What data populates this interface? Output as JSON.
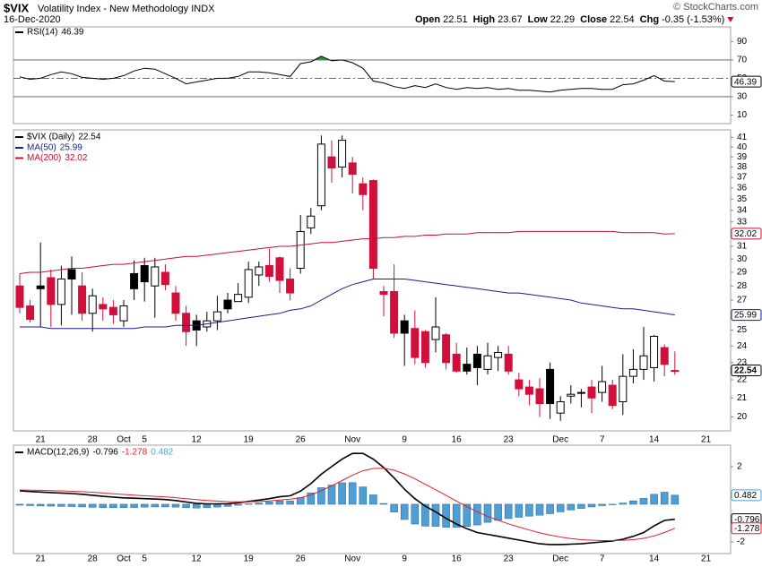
{
  "header": {
    "symbol": "$VIX",
    "name": "Volatility Index - New Methodology INDX",
    "date": "16-Dec-2020",
    "credit": "© StockCharts.com",
    "quote": [
      {
        "label": "Open",
        "value": 22.51
      },
      {
        "label": "High",
        "value": 23.67
      },
      {
        "label": "Low",
        "value": 22.29
      },
      {
        "label": "Close",
        "value": 22.54
      },
      {
        "label": "Chg",
        "value": -0.35
      }
    ],
    "change_pct": {
      "value": -1.53,
      "label": "(-1.53%)"
    }
  },
  "chart_data": [
    {
      "type": "rsi",
      "ylim": [
        0.7,
        106
      ],
      "yticks": [
        10,
        30,
        50,
        70,
        90
      ],
      "levels": [
        {
          "value": 70
        },
        {
          "value": 50,
          "dash": true
        },
        {
          "value": 30
        }
      ],
      "overbought_color": "#3d8f3d",
      "oversold_color": "#d0103a",
      "series": [
        {
          "name": "RSI(14)",
          "color": "#000000",
          "values": [
            51.5,
            49,
            50,
            54,
            57,
            55,
            51,
            50,
            49,
            50,
            53,
            58,
            61,
            60,
            55,
            50,
            44,
            46,
            48,
            50,
            50,
            52,
            57,
            57,
            56,
            54,
            52,
            66,
            68,
            74,
            69,
            70,
            67,
            61,
            47,
            45,
            41,
            39,
            42,
            40,
            44,
            40,
            38,
            40,
            39,
            40,
            38,
            39,
            37,
            37,
            36,
            35,
            37,
            38,
            39,
            39,
            38,
            38,
            43,
            44,
            48,
            53,
            47,
            46.39,
            null,
            null,
            null
          ]
        }
      ]
    },
    {
      "type": "candlestick",
      "name": "$VIX (Daily)",
      "log": true,
      "ylim": [
        19.3,
        41.8
      ],
      "yticks": [
        20,
        21,
        22,
        23,
        24,
        25,
        26,
        27,
        28,
        29,
        30,
        31,
        32,
        33,
        34,
        35,
        36,
        37,
        38,
        39,
        40,
        41
      ],
      "up_color": "#000000",
      "down_color": "#d0103a",
      "categories": [
        null,
        null,
        "21",
        null,
        null,
        null,
        null,
        "28",
        null,
        null,
        "Oct",
        null,
        "5",
        null,
        null,
        null,
        null,
        "12",
        null,
        null,
        null,
        null,
        "19",
        null,
        null,
        null,
        null,
        "26",
        null,
        null,
        null,
        null,
        "Nov",
        null,
        null,
        null,
        null,
        "9",
        null,
        null,
        null,
        null,
        "16",
        null,
        null,
        null,
        null,
        "23",
        null,
        null,
        null,
        null,
        "Dec",
        null,
        null,
        null,
        "7",
        null,
        null,
        null,
        null,
        "14",
        null,
        null,
        null,
        null,
        "21"
      ],
      "open": [
        28.0,
        26.6,
        28.0,
        28.6,
        26.7,
        29.2,
        28.0,
        26.1,
        26.7,
        26.5,
        25.6,
        28.9,
        29.5,
        28.0,
        29.0,
        27.5,
        26.1,
        25.6,
        25.2,
        25.6,
        27.0,
        26.9,
        27.2,
        28.8,
        29.5,
        30.1,
        28.5,
        29.3,
        32.5,
        34.4,
        39.0,
        38.0,
        38.4,
        36.4,
        36.7,
        27.6,
        27.6,
        25.6,
        25.1,
        24.9,
        24.4,
        24.7,
        23.5,
        22.9,
        23.5,
        22.6,
        23.3,
        23.5,
        22.0,
        21.6,
        21.5,
        22.6,
        20.2,
        21.1,
        21.3,
        21.6,
        21.3,
        21.7,
        20.8,
        22.2,
        22.6,
        22.7,
        23.9,
        22.51,
        null,
        null,
        null
      ],
      "high": [
        28.9,
        27.0,
        31.3,
        29.2,
        29.5,
        30.2,
        29.0,
        27.8,
        27.2,
        27.0,
        27.0,
        29.9,
        30.1,
        30.1,
        29.6,
        28.0,
        26.6,
        26.0,
        26.2,
        27.3,
        27.5,
        28.2,
        29.8,
        29.8,
        30.8,
        30.2,
        29.3,
        33.6,
        34.2,
        41.2,
        40.7,
        41.2,
        39.0,
        37.0,
        36.8,
        28.0,
        29.6,
        26.0,
        26.3,
        25.0,
        27.2,
        24.8,
        24.2,
        23.9,
        24.0,
        24.2,
        24.0,
        24.0,
        22.4,
        22.0,
        22.1,
        23.0,
        21.1,
        21.7,
        21.5,
        22.0,
        22.8,
        22.0,
        23.5,
        23.8,
        25.2,
        24.7,
        24.1,
        23.67,
        null,
        null,
        null
      ],
      "low": [
        26.1,
        25.5,
        25.2,
        25.2,
        25.3,
        26.0,
        25.6,
        24.9,
        25.6,
        25.4,
        25.2,
        27.0,
        26.9,
        25.8,
        27.7,
        25.6,
        24.0,
        24.0,
        24.9,
        25.0,
        26.1,
        26.9,
        26.8,
        28.0,
        28.3,
        27.5,
        27.0,
        28.9,
        32.0,
        34.0,
        36.5,
        37.0,
        35.5,
        34.0,
        28.5,
        25.9,
        24.5,
        22.8,
        22.9,
        22.7,
        23.6,
        22.6,
        22.4,
        22.3,
        21.7,
        22.3,
        22.5,
        22.3,
        21.1,
        20.6,
        20.0,
        19.9,
        19.8,
        20.7,
        20.5,
        20.2,
        20.8,
        20.4,
        20.1,
        21.8,
        22.0,
        21.9,
        22.2,
        22.29,
        null,
        null,
        null
      ],
      "close": [
        26.5,
        25.7,
        27.8,
        26.7,
        28.5,
        28.5,
        26.1,
        27.3,
        26.4,
        26.0,
        26.6,
        27.8,
        28.3,
        29.4,
        28.1,
        26.1,
        24.9,
        25.0,
        25.6,
        26.2,
        26.4,
        27.4,
        29.2,
        29.4,
        28.7,
        28.4,
        27.5,
        32.2,
        33.5,
        40.3,
        37.9,
        40.7,
        37.3,
        35.4,
        29.3,
        27.4,
        24.8,
        24.8,
        23.3,
        23.0,
        25.2,
        23.0,
        22.5,
        22.5,
        22.7,
        23.4,
        23.6,
        22.5,
        21.5,
        21.2,
        20.7,
        20.7,
        20.8,
        21.2,
        21.25,
        21.0,
        21.9,
        20.6,
        22.2,
        22.6,
        23.4,
        24.6,
        22.89,
        22.54,
        null,
        null,
        null
      ],
      "series": [
        {
          "name": "MA(50)",
          "color": "#1c1c8c",
          "values": [
            25.2,
            25.2,
            25.2,
            25.1,
            25.1,
            25.1,
            25.1,
            25.1,
            25.1,
            25.1,
            25.1,
            25.1,
            25.2,
            25.2,
            25.2,
            25.3,
            25.3,
            25.3,
            25.4,
            25.5,
            25.6,
            25.7,
            25.8,
            25.9,
            26.0,
            26.1,
            26.3,
            26.4,
            26.6,
            27.0,
            27.4,
            27.8,
            28.1,
            28.3,
            28.5,
            28.5,
            28.5,
            28.5,
            28.4,
            28.3,
            28.2,
            28.1,
            28.0,
            27.9,
            27.8,
            27.7,
            27.6,
            27.5,
            27.5,
            27.4,
            27.3,
            27.2,
            27.1,
            27.0,
            26.8,
            26.7,
            26.6,
            26.5,
            26.4,
            26.4,
            26.3,
            26.2,
            26.1,
            25.99,
            null,
            null,
            null
          ]
        },
        {
          "name": "MA(200)",
          "color": "#c8102e",
          "values": [
            28.9,
            29.0,
            29.0,
            29.1,
            29.2,
            29.3,
            29.3,
            29.4,
            29.5,
            29.6,
            29.6,
            29.7,
            29.8,
            29.9,
            30.0,
            30.1,
            30.2,
            30.2,
            30.3,
            30.4,
            30.5,
            30.6,
            30.7,
            30.8,
            30.9,
            31.0,
            31.0,
            31.1,
            31.2,
            31.3,
            31.3,
            31.4,
            31.5,
            31.6,
            31.6,
            31.7,
            31.7,
            31.8,
            31.8,
            31.9,
            31.9,
            32.0,
            32.0,
            32.0,
            32.1,
            32.1,
            32.1,
            32.1,
            32.2,
            32.2,
            32.2,
            32.2,
            32.2,
            32.2,
            32.2,
            32.2,
            32.2,
            32.2,
            32.1,
            32.1,
            32.1,
            32.1,
            32.0,
            32.02,
            null,
            null,
            null
          ]
        }
      ]
    },
    {
      "type": "macd",
      "ylim": [
        -2.62,
        3.14
      ],
      "yticks": [
        -2,
        2
      ],
      "categories": [
        null,
        null,
        "21",
        null,
        null,
        null,
        null,
        "28",
        null,
        null,
        "Oct",
        null,
        "5",
        null,
        null,
        null,
        null,
        "12",
        null,
        null,
        null,
        null,
        "19",
        null,
        null,
        null,
        null,
        "26",
        null,
        null,
        null,
        null,
        "Nov",
        null,
        null,
        null,
        null,
        "9",
        null,
        null,
        null,
        null,
        "16",
        null,
        null,
        null,
        null,
        "23",
        null,
        null,
        null,
        null,
        "Dec",
        null,
        null,
        null,
        "7",
        null,
        null,
        null,
        null,
        "14",
        null,
        null,
        null,
        null,
        "21"
      ],
      "series": [
        {
          "name": "MACD(12,26,9)",
          "color": "#000000",
          "kind": "line",
          "values": [
            0.71,
            0.68,
            0.65,
            0.62,
            0.6,
            0.57,
            0.53,
            0.48,
            0.42,
            0.38,
            0.34,
            0.32,
            0.3,
            0.28,
            0.25,
            0.2,
            0.12,
            0.05,
            0.02,
            0.02,
            0.03,
            0.08,
            0.15,
            0.22,
            0.3,
            0.4,
            0.45,
            0.7,
            1.1,
            1.6,
            2.0,
            2.4,
            2.7,
            2.7,
            2.4,
            1.95,
            1.4,
            0.8,
            0.3,
            -0.1,
            -0.4,
            -0.75,
            -1.05,
            -1.3,
            -1.5,
            -1.6,
            -1.7,
            -1.8,
            -1.9,
            -2.0,
            -2.1,
            -2.14,
            -2.14,
            -2.12,
            -2.1,
            -2.05,
            -2.0,
            -1.95,
            -1.86,
            -1.7,
            -1.5,
            -1.15,
            -0.86,
            -0.796,
            null,
            null,
            null
          ]
        },
        {
          "color": "#e0202a",
          "kind": "line",
          "values": [
            0.76,
            0.75,
            0.74,
            0.72,
            0.71,
            0.69,
            0.67,
            0.64,
            0.6,
            0.56,
            0.52,
            0.49,
            0.45,
            0.42,
            0.39,
            0.35,
            0.3,
            0.25,
            0.2,
            0.17,
            0.14,
            0.13,
            0.13,
            0.15,
            0.18,
            0.22,
            0.27,
            0.35,
            0.5,
            0.72,
            0.98,
            1.26,
            1.55,
            1.78,
            1.9,
            1.91,
            1.81,
            1.61,
            1.35,
            1.06,
            0.77,
            0.47,
            0.17,
            -0.12,
            -0.4,
            -0.64,
            -0.85,
            -1.04,
            -1.21,
            -1.37,
            -1.52,
            -1.64,
            -1.74,
            -1.82,
            -1.88,
            -1.91,
            -1.93,
            -1.93,
            -1.92,
            -1.88,
            -1.81,
            -1.68,
            -1.5,
            -1.278,
            null,
            null,
            null
          ]
        },
        {
          "color": "#4f9fd6",
          "kind": "histogram",
          "values": [
            -0.05,
            -0.07,
            -0.09,
            -0.1,
            -0.11,
            -0.12,
            -0.14,
            -0.16,
            -0.18,
            -0.18,
            -0.18,
            -0.17,
            -0.15,
            -0.14,
            -0.14,
            -0.15,
            -0.18,
            -0.2,
            -0.18,
            -0.15,
            -0.11,
            -0.05,
            0.02,
            0.07,
            0.12,
            0.18,
            0.18,
            0.35,
            0.6,
            0.88,
            1.02,
            1.14,
            1.15,
            0.92,
            0.5,
            0.04,
            -0.41,
            -0.81,
            -1.05,
            -1.16,
            -1.17,
            -1.22,
            -1.22,
            -1.18,
            -1.1,
            -0.96,
            -0.85,
            -0.76,
            -0.69,
            -0.63,
            -0.58,
            -0.5,
            -0.4,
            -0.3,
            -0.22,
            -0.14,
            -0.07,
            -0.02,
            0.06,
            0.18,
            0.31,
            0.53,
            0.64,
            0.482,
            null,
            null,
            null
          ]
        }
      ]
    }
  ]
}
